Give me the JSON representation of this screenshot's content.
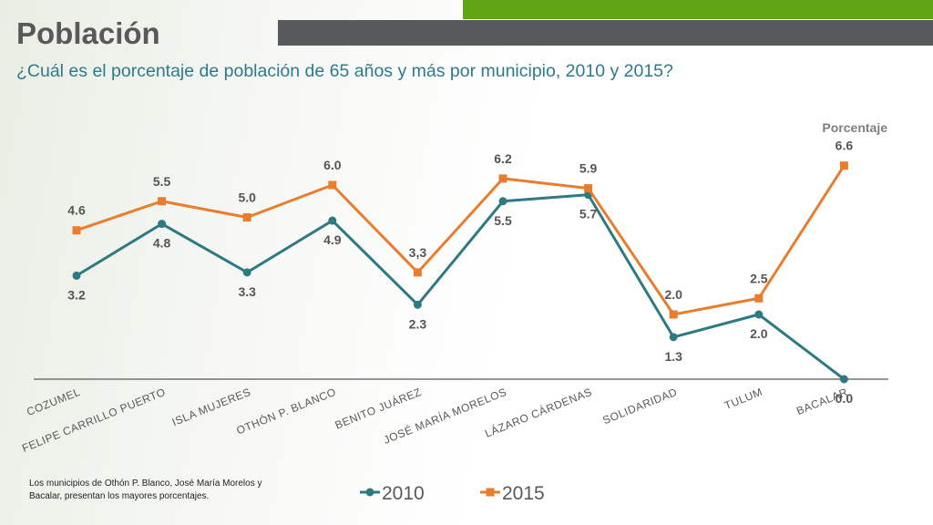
{
  "header": {
    "title": "Población",
    "subtitle": "¿Cuál es el porcentaje de población de 65 años y más por municipio, 2010 y 2015?"
  },
  "footnote": "Los municipios de Othón P. Blanco, José María Morelos y Bacalar, presentan los mayores porcentajes.",
  "colors": {
    "green_bar": "#5fa516",
    "gray_bar": "#58595b",
    "series_2010": "#2e7a80",
    "series_2015": "#e87d2e",
    "subtitle": "#2e7a8c"
  },
  "chart_data": {
    "type": "line",
    "title": "",
    "ylabel": "Porcentaje",
    "xlabel": "",
    "ylim": [
      0,
      7
    ],
    "grid": false,
    "legend": "bottom",
    "categories": [
      "COZUMEL",
      "FELIPE CARRILLO PUERTO",
      "ISLA MUJERES",
      "OTHÓN P. BLANCO",
      "BENITO JUÁREZ",
      "JOSÉ MARÍA MORELOS",
      "LÁZARO CÁRDENAS",
      "SOLIDARIDAD",
      "TULUM",
      "BACALAR"
    ],
    "series": [
      {
        "name": "2010",
        "values": [
          3.2,
          4.8,
          3.3,
          4.9,
          2.3,
          5.5,
          5.7,
          1.3,
          2.0,
          0.0
        ],
        "labels": [
          "3.2",
          "4.8",
          "3.3",
          "4.9",
          "2.3",
          "5.5",
          "5.7",
          "1.3",
          "2.0",
          "0.0"
        ]
      },
      {
        "name": "2015",
        "values": [
          4.6,
          5.5,
          5.0,
          6.0,
          3.3,
          6.2,
          5.9,
          2.0,
          2.5,
          6.6
        ],
        "labels": [
          "4.6",
          "5.5",
          "5.0",
          "6.0",
          "3,3",
          "6.2",
          "5.9",
          "2.0",
          "2.5",
          "6.6"
        ]
      }
    ]
  }
}
